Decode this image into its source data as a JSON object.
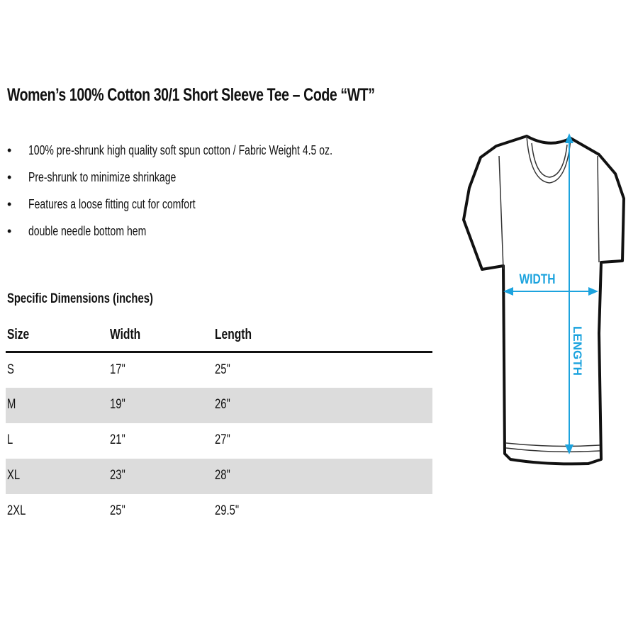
{
  "title": "Women’s 100% Cotton 30/1 Short Sleeve Tee – Code “WT”",
  "features": [
    "100% pre-shrunk high quality soft spun cotton / Fabric Weight 4.5 oz.",
    "Pre-shrunk to minimize shrinkage",
    "Features a loose fitting cut for comfort",
    "double needle bottom hem"
  ],
  "bullet_char": "•",
  "dimensions": {
    "heading": "Specific Dimensions (inches)",
    "columns": [
      "Size",
      "Width",
      "Length"
    ],
    "rows": [
      [
        "S",
        "17\"",
        "25\""
      ],
      [
        "M",
        "19\"",
        "26\""
      ],
      [
        "L",
        "21\"",
        "27\""
      ],
      [
        "XL",
        "23\"",
        "28\""
      ],
      [
        "2XL",
        "25\"",
        "29.5\""
      ]
    ]
  },
  "diagram": {
    "width_label": "WIDTH",
    "length_label": "LENGTH",
    "accent_color": "#1ca3de",
    "row_shade_color": "#dcdcdc"
  }
}
